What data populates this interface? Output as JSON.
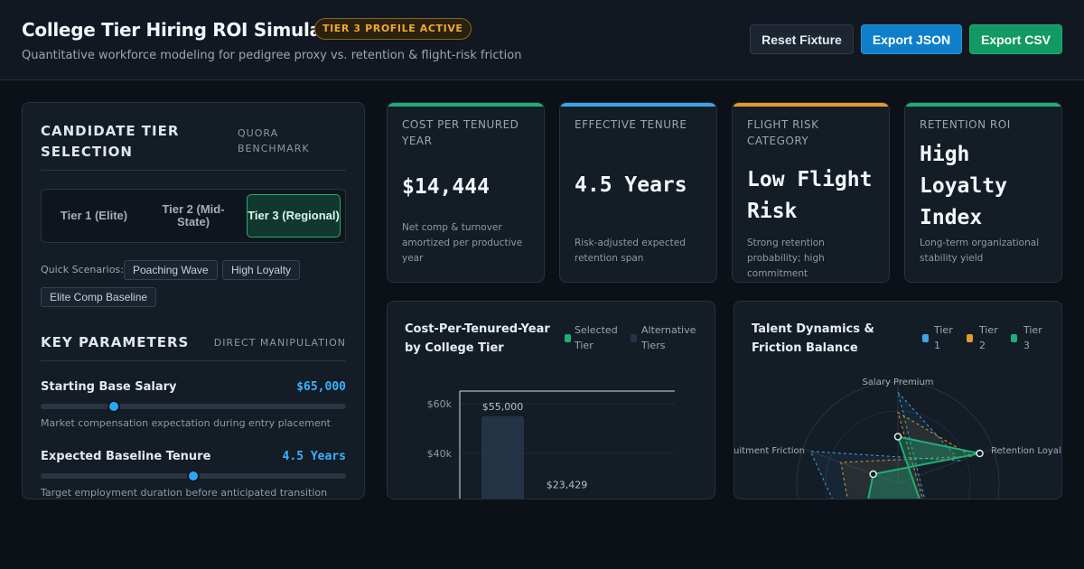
{
  "header": {
    "title": "College Tier Hiring ROI Simulator",
    "badge": "TIER 3 PROFILE ACTIVE",
    "subtitle": "Quantitative workforce modeling for pedigree proxy vs. retention & flight-risk friction",
    "buttons": {
      "reset": "Reset Fixture",
      "export_json": "Export JSON",
      "export_csv": "Export CSV"
    }
  },
  "tier_selection": {
    "title": "CANDIDATE TIER SELECTION",
    "tag": "QUORA BENCHMARK",
    "tiers": [
      "Tier 1 (Elite)",
      "Tier 2 (Mid-State)",
      "Tier 3 (Regional)"
    ],
    "selected_tier": "Tier 3 (Regional)",
    "quick_label": "Quick Scenarios:",
    "scenarios": [
      "Poaching Wave",
      "High Loyalty",
      "Elite Comp Baseline"
    ]
  },
  "parameters": {
    "title": "KEY PARAMETERS",
    "tag": "DIRECT MANIPULATION",
    "items": [
      {
        "label": "Starting Base Salary",
        "value": "$65,000",
        "position": 0.24,
        "desc": "Market compensation expectation during entry placement"
      },
      {
        "label": "Expected Baseline Tenure",
        "value": "4.5 Years",
        "position": 0.5,
        "desc": "Target employment duration before anticipated transition"
      }
    ]
  },
  "kpis": [
    {
      "label": "COST PER TENURED YEAR",
      "value": "$14,444",
      "desc": "Net comp & turnover amortized per productive year",
      "accent": "#1fae78"
    },
    {
      "label": "EFFECTIVE TENURE",
      "value": "4.5 Years",
      "desc": "Risk-adjusted expected retention span",
      "accent": "#3aa5e8"
    },
    {
      "label": "FLIGHT RISK CATEGORY",
      "value": "Low Flight Risk",
      "desc": "Strong retention probability; high commitment",
      "accent": "#e39a2a"
    },
    {
      "label": "RETENTION ROI",
      "value": "High Loyalty Index",
      "desc": "Long-term organizational stability yield",
      "accent": "#1fae78"
    }
  ],
  "bar_chart": {
    "title": "Cost-Per-Tenured-Year by College Tier",
    "legend": [
      "Selected Tier",
      "Alternative Tiers"
    ],
    "colors": {
      "selected": "#1fae78",
      "alternative": "#243346"
    },
    "y_ticks": [
      "$60k",
      "$40k"
    ]
  },
  "radar_chart": {
    "title": "Talent Dynamics & Friction Balance",
    "legend": [
      "Tier 1",
      "Tier 2",
      "Tier 3"
    ],
    "colors": {
      "tier1": "#3aa5e8",
      "tier2": "#e39a2a",
      "tier3": "#1fae78"
    },
    "axis_labels": [
      "Salary Premium",
      "Retention Loyalty",
      "Recruitment Friction"
    ]
  },
  "chart_data": [
    {
      "type": "bar",
      "title": "Cost-Per-Tenured-Year by College Tier",
      "y_ticks": [
        "$60k",
        "$40k"
      ],
      "ylim": [
        0,
        70000
      ],
      "series": [
        {
          "name": "Alternative Tiers",
          "values": [
            55000,
            23429
          ]
        }
      ],
      "data_labels": [
        "$55,000",
        "$23,429"
      ],
      "legend": [
        "Selected Tier",
        "Alternative Tiers"
      ],
      "legend_position": "top-right",
      "grid": true
    },
    {
      "type": "radar",
      "title": "Talent Dynamics & Friction Balance",
      "axes": [
        "Salary Premium",
        "Retention Loyalty",
        "Recruitment Friction"
      ],
      "series": [
        {
          "name": "Tier 1",
          "values": [
            0.9,
            0.65,
            0.92
          ]
        },
        {
          "name": "Tier 2",
          "values": [
            0.7,
            0.78,
            0.6
          ]
        },
        {
          "name": "Tier 3",
          "values": [
            0.46,
            0.86,
            0.26
          ]
        }
      ],
      "legend_position": "top-right"
    }
  ]
}
